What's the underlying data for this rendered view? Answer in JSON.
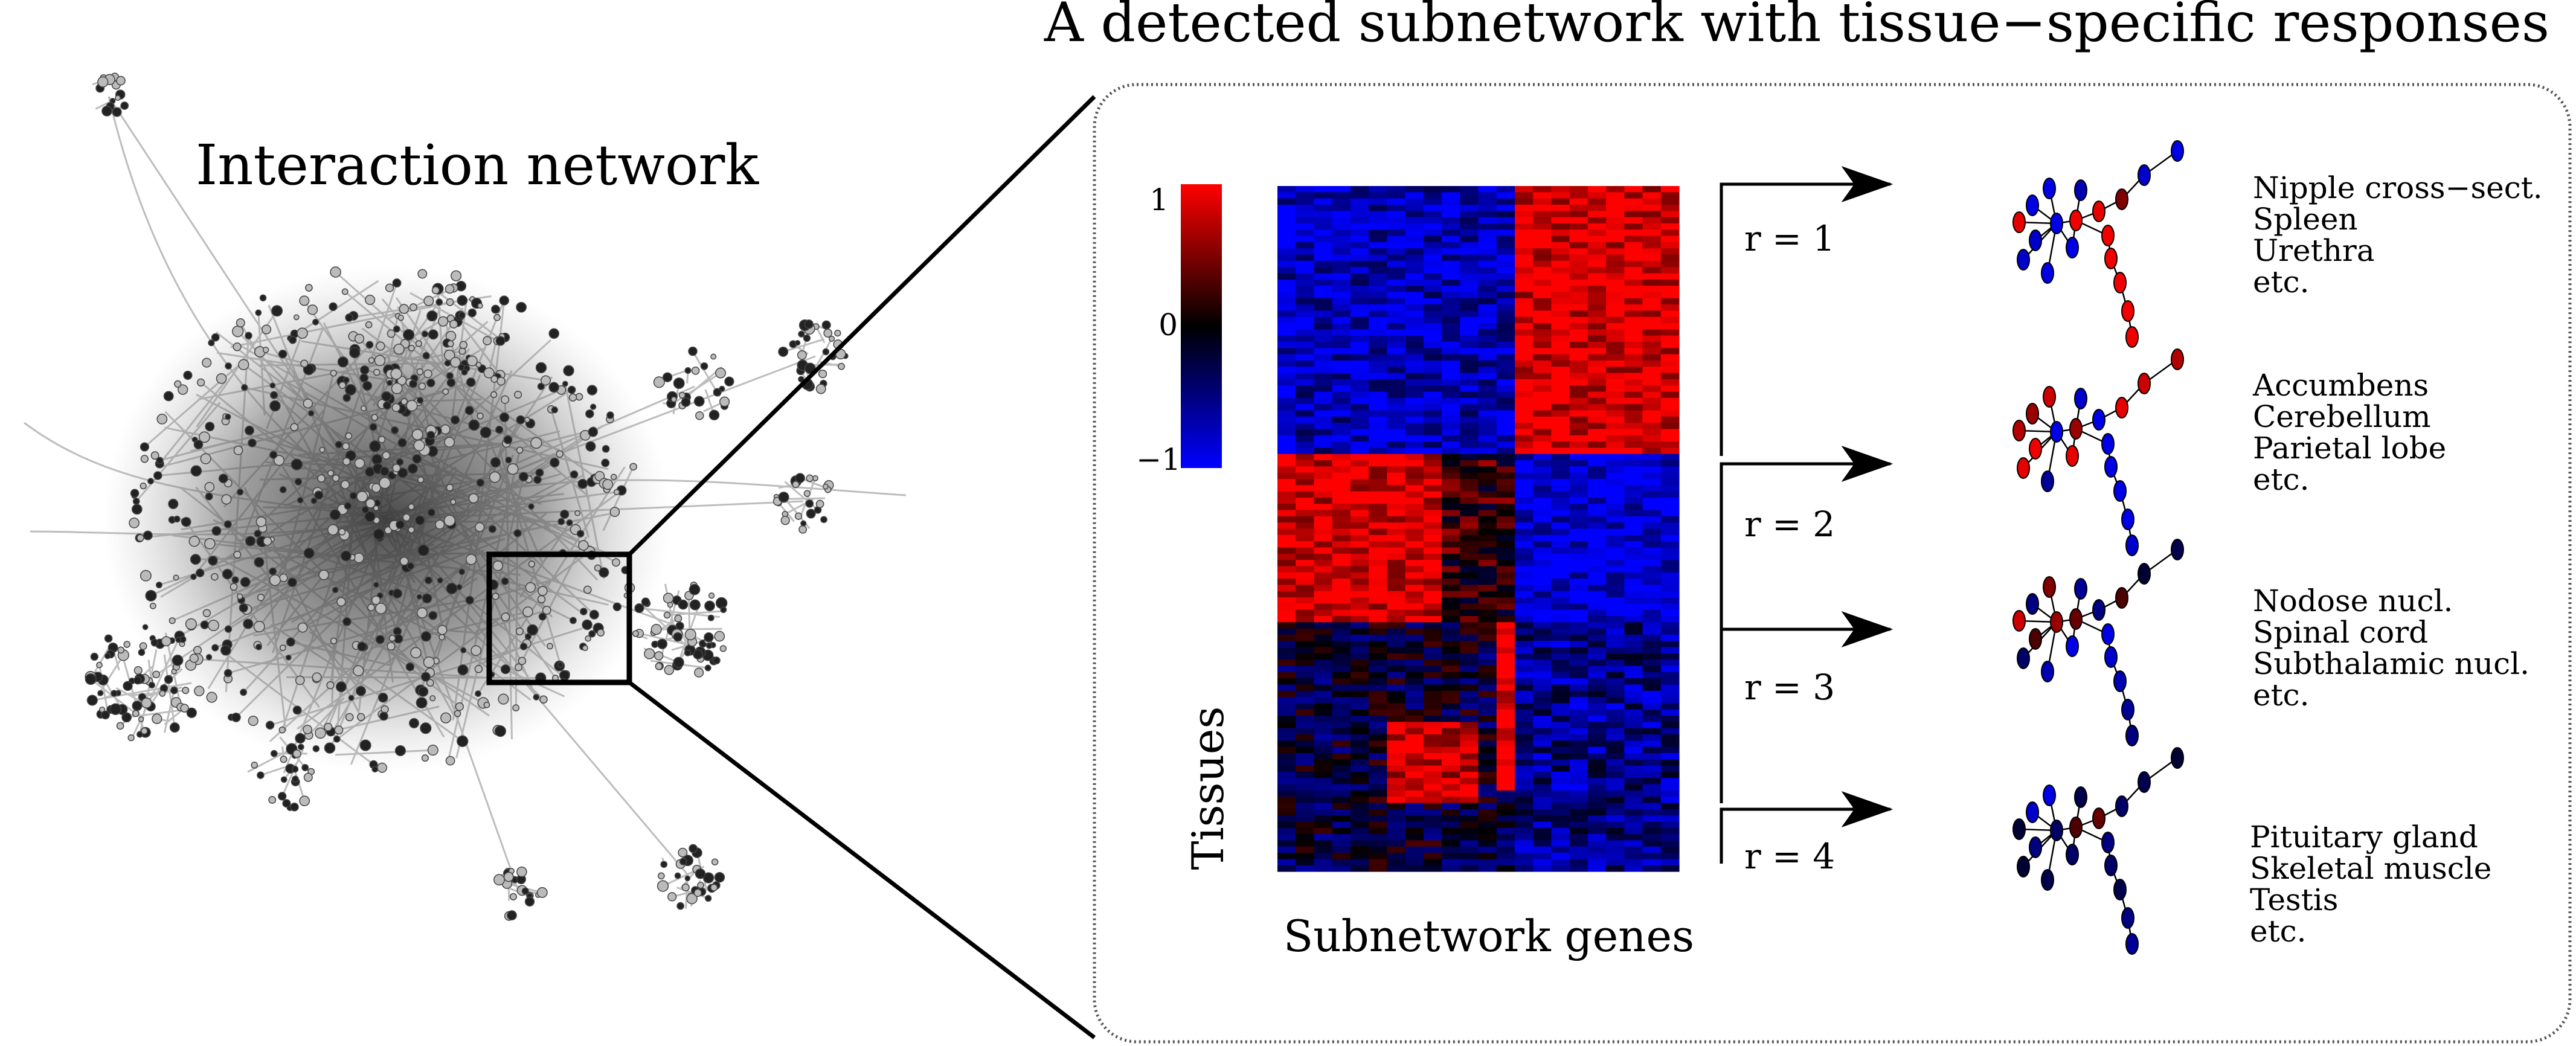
{
  "left_title": "Interaction network",
  "right_title": "A detected subnetwork with tissue−specific responses",
  "colorbar": {
    "ticks": [
      "1",
      "0",
      "−1"
    ],
    "colors": [
      "#ff0000",
      "#000000",
      "#0000ff"
    ]
  },
  "heatmap": {
    "xlabel": "Subnetwork genes",
    "ylabel": "Tissues"
  },
  "responses": [
    {
      "label": "r = 1",
      "tissues": [
        "Nipple cross−sect.",
        "Spleen",
        "Urethra",
        "etc."
      ]
    },
    {
      "label": "r = 2",
      "tissues": [
        "Accumbens",
        "Cerebellum",
        "Parietal lobe",
        "etc."
      ]
    },
    {
      "label": "r = 3",
      "tissues": [
        "Nodose nucl.",
        "Spinal cord",
        "Subthalamic nucl.",
        "etc."
      ]
    },
    {
      "label": "r = 4",
      "tissues": [
        "Pituitary gland",
        "Skeletal muscle",
        "Testis",
        "etc."
      ]
    }
  ]
}
